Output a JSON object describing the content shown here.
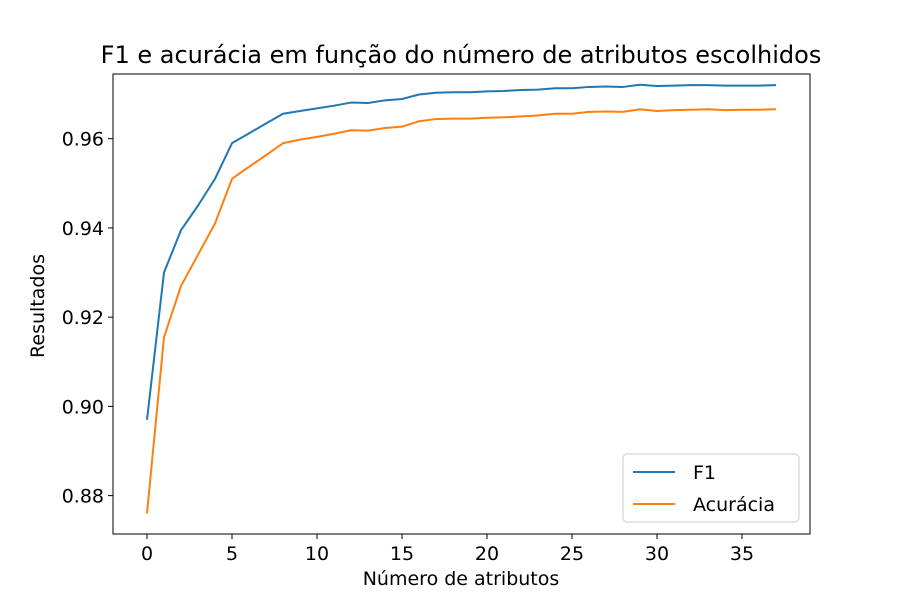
{
  "chart_data": {
    "type": "line",
    "title": "F1 e acurácia em função do número de atributos escolhidos",
    "xlabel": "Número de atributos",
    "ylabel": "Resultados",
    "xlim": [
      -2,
      39
    ],
    "ylim": [
      0.8714,
      0.9745
    ],
    "xticks": [
      0,
      5,
      10,
      15,
      20,
      25,
      30,
      35
    ],
    "yticks": [
      0.88,
      0.9,
      0.92,
      0.94,
      0.96
    ],
    "ytick_labels": [
      "0.88",
      "0.90",
      "0.92",
      "0.94",
      "0.96"
    ],
    "grid": false,
    "legend_position": "bottom-right",
    "series": [
      {
        "name": "F1",
        "color": "#1f77b4",
        "x": [
          0,
          1,
          2,
          3,
          4,
          5,
          6,
          7,
          8,
          9,
          10,
          11,
          12,
          13,
          14,
          15,
          16,
          17,
          18,
          19,
          20,
          21,
          22,
          23,
          24,
          25,
          26,
          27,
          28,
          29,
          30,
          31,
          32,
          33,
          34,
          35,
          36,
          37
        ],
        "values": [
          0.897,
          0.93,
          0.9395,
          0.945,
          0.951,
          0.959,
          0.9612,
          0.9634,
          0.9656,
          0.9662,
          0.9668,
          0.9674,
          0.9681,
          0.968,
          0.9686,
          0.9689,
          0.9699,
          0.9703,
          0.9704,
          0.9704,
          0.9706,
          0.9707,
          0.9709,
          0.971,
          0.9713,
          0.9713,
          0.9716,
          0.9717,
          0.9716,
          0.9721,
          0.9718,
          0.9719,
          0.972,
          0.972,
          0.9719,
          0.9719,
          0.9719,
          0.972
        ]
      },
      {
        "name": "Acurácia",
        "color": "#ff7f0e",
        "x": [
          0,
          1,
          2,
          3,
          4,
          5,
          6,
          7,
          8,
          9,
          10,
          11,
          12,
          13,
          14,
          15,
          16,
          17,
          18,
          19,
          20,
          21,
          22,
          23,
          24,
          25,
          26,
          27,
          28,
          29,
          30,
          31,
          32,
          33,
          34,
          35,
          36,
          37
        ],
        "values": [
          0.876,
          0.9155,
          0.927,
          0.934,
          0.941,
          0.951,
          0.9537,
          0.9563,
          0.959,
          0.9598,
          0.9604,
          0.9611,
          0.9619,
          0.9618,
          0.9624,
          0.9627,
          0.9639,
          0.9644,
          0.9645,
          0.9645,
          0.9647,
          0.9648,
          0.965,
          0.9652,
          0.9656,
          0.9656,
          0.966,
          0.9661,
          0.966,
          0.9666,
          0.9662,
          0.9664,
          0.9665,
          0.9666,
          0.9664,
          0.9665,
          0.9665,
          0.9666
        ]
      }
    ]
  }
}
